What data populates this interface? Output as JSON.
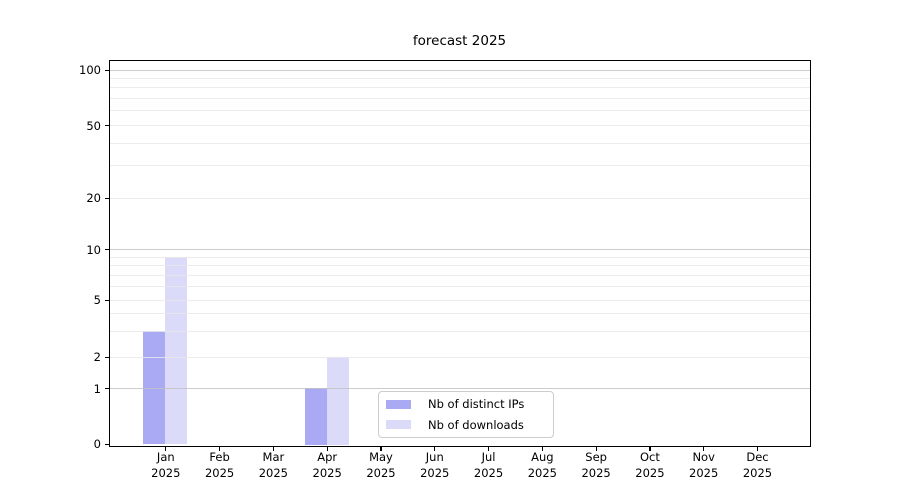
{
  "chart_data": {
    "type": "bar",
    "title": "forecast 2025",
    "x": {
      "months": [
        "Jan",
        "Feb",
        "Mar",
        "Apr",
        "May",
        "Jun",
        "Jul",
        "Aug",
        "Sep",
        "Oct",
        "Nov",
        "Dec"
      ],
      "year": "2025"
    },
    "series": [
      {
        "name": "Nb of distinct IPs",
        "color": "#a9a9f4",
        "values": [
          3,
          0,
          0,
          1,
          0,
          0,
          0,
          0,
          0,
          0,
          0,
          0
        ]
      },
      {
        "name": "Nb of downloads",
        "color": "#dbdbf9",
        "values": [
          9,
          0,
          0,
          2,
          0,
          0,
          0,
          0,
          0,
          0,
          0,
          0
        ]
      }
    ],
    "y_axis": {
      "scale": "log-like",
      "tick_values": [
        0,
        1,
        2,
        5,
        10,
        20,
        50,
        100
      ],
      "tick_labels": [
        "0",
        "1",
        "2",
        "5",
        "10",
        "20",
        "50",
        "100"
      ],
      "decade_ticks": [
        1,
        10,
        100
      ],
      "minor_gridlines": [
        3,
        4,
        6,
        7,
        8,
        9,
        30,
        40,
        60,
        70,
        80,
        90
      ]
    },
    "legend": {
      "position": "lower center",
      "entries": [
        "Nb of distinct IPs",
        "Nb of downloads"
      ]
    }
  },
  "colors": {
    "grid_decade": "#c3c3c3",
    "grid_minor": "#e9e9e9",
    "spine": "#000000",
    "background": "#ffffff",
    "text": "#000000",
    "legend_border": "#cccccc",
    "bar_distinct_ips": "#a9a9f4",
    "bar_downloads": "#dbdbf9"
  }
}
